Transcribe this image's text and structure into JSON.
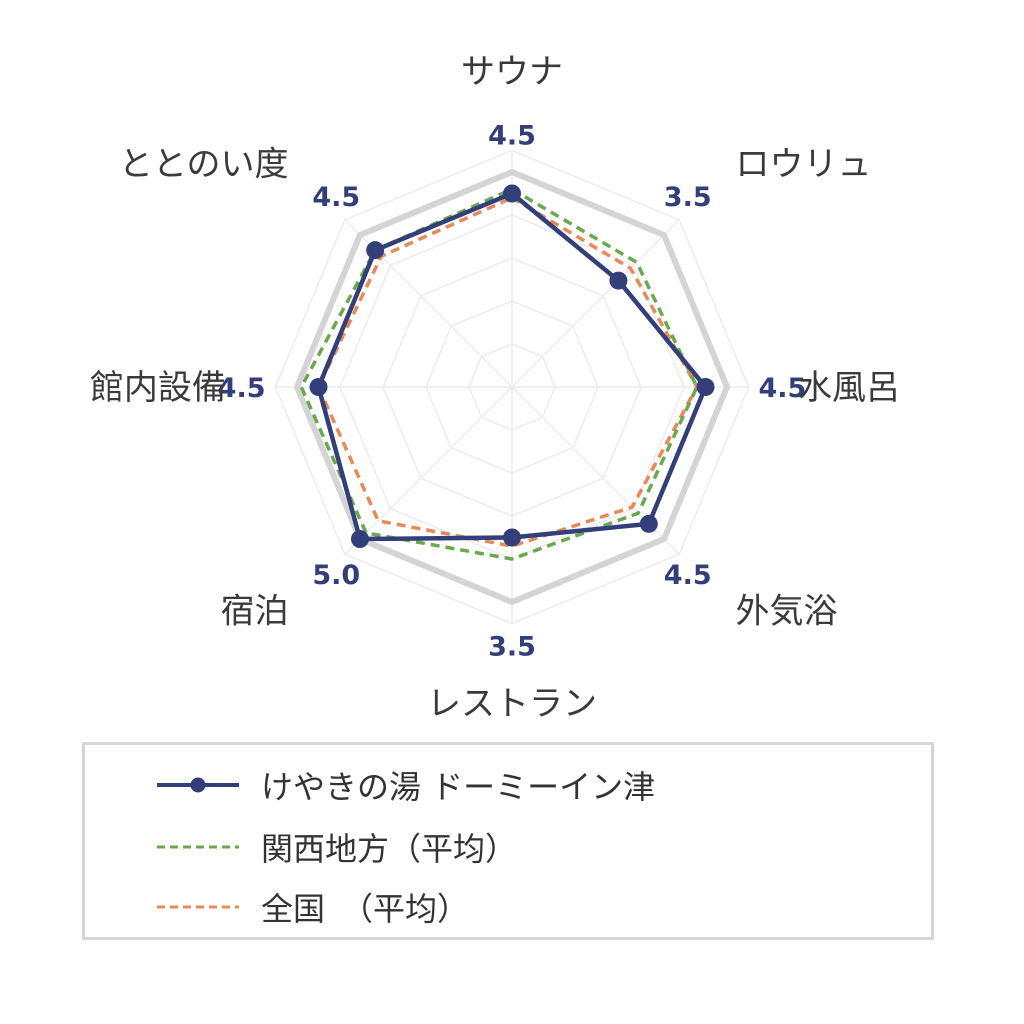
{
  "chart_data": {
    "type": "radar",
    "categories": [
      "サウナ",
      "ロウリュ",
      "水風呂",
      "外気浴",
      "レストラン",
      "宿泊",
      "館内設備",
      "ととのい度"
    ],
    "rlim": [
      0,
      5
    ],
    "grid": true,
    "legend_position": "bottom",
    "series": [
      {
        "name": "けやきの湯 ドーミーイン津",
        "values": [
          4.5,
          3.5,
          4.5,
          4.5,
          3.5,
          5.0,
          4.5,
          4.5
        ],
        "color": "#333f78",
        "style": "solid-marker"
      },
      {
        "name": "関西地方（平均）",
        "values": [
          4.6,
          4.1,
          4.3,
          4.15,
          4.0,
          4.8,
          4.9,
          4.5
        ],
        "color": "#6aa84f",
        "style": "dashed"
      },
      {
        "name": "全国　（平均）",
        "values": [
          4.4,
          3.9,
          4.3,
          3.95,
          3.7,
          4.4,
          4.5,
          4.3
        ],
        "color": "#e8895a",
        "style": "dashed"
      }
    ],
    "value_labels": [
      "4.5",
      "3.5",
      "4.5",
      "4.5",
      "3.5",
      "5.0",
      "4.5",
      "4.5"
    ],
    "max_ring_color": "#d4d4d4"
  },
  "legend": {
    "items": [
      {
        "label": "けやきの湯 ドーミーイン津"
      },
      {
        "label": "関西地方（平均）"
      },
      {
        "label": "全国　（平均）"
      }
    ]
  }
}
